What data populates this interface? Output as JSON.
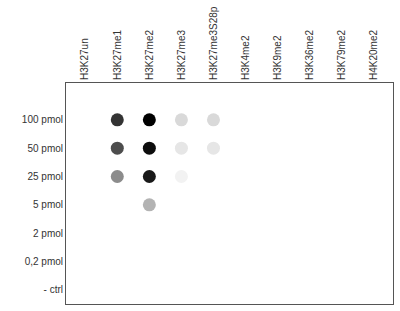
{
  "chart_data": {
    "type": "dot_blot",
    "categories": [
      "H3K27un",
      "H3K27me1",
      "H3K27me2",
      "H3K27me3",
      "H3K27me3S28p",
      "H3K4me2",
      "H3K9me2",
      "H3K36me2",
      "H3K79me2",
      "H4K20me2"
    ],
    "rows": [
      "100 pmol",
      "50 pmol",
      "25 pmol",
      "5 pmol",
      "2 pmol",
      "0,2 pmol",
      "- ctrl"
    ],
    "cells": [
      [
        0,
        0.8,
        1.0,
        0.15,
        0.15,
        0,
        0,
        0,
        0,
        0
      ],
      [
        0,
        0.7,
        0.95,
        0.1,
        0.1,
        0,
        0,
        0,
        0,
        0
      ],
      [
        0,
        0.45,
        0.9,
        0.05,
        0,
        0,
        0,
        0,
        0,
        0
      ],
      [
        0,
        0,
        0.3,
        0,
        0,
        0,
        0,
        0,
        0,
        0
      ],
      [
        0,
        0,
        0,
        0,
        0,
        0,
        0,
        0,
        0,
        0
      ],
      [
        0,
        0,
        0,
        0,
        0,
        0,
        0,
        0,
        0,
        0
      ],
      [
        0,
        0,
        0,
        0,
        0,
        0,
        0,
        0,
        0,
        0
      ]
    ],
    "color": "#000000"
  }
}
